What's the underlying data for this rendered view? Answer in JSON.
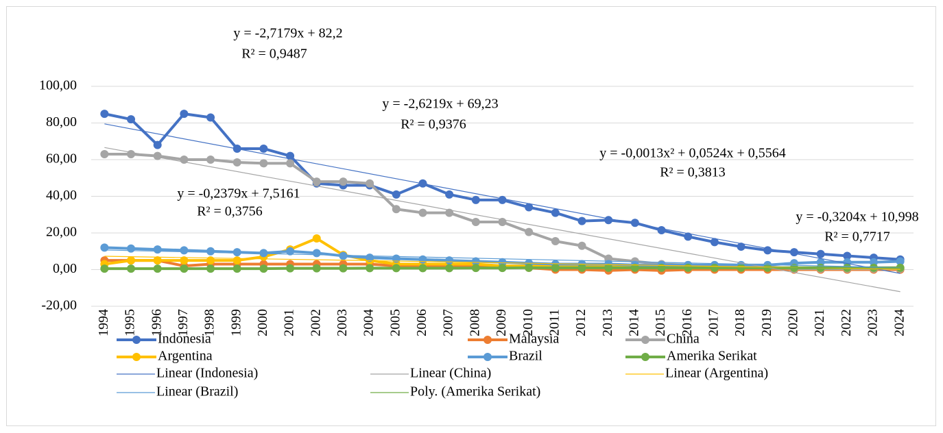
{
  "chart_data": {
    "type": "line",
    "categories": [
      "1994",
      "1995",
      "1996",
      "1997",
      "1998",
      "1999",
      "2000",
      "2001",
      "2002",
      "2003",
      "2004",
      "2005",
      "2006",
      "2007",
      "2008",
      "2009",
      "2010",
      "2011",
      "2012",
      "2013",
      "2014",
      "2015",
      "2016",
      "2017",
      "2018",
      "2019",
      "2020",
      "2021",
      "2022",
      "2023",
      "2024"
    ],
    "ylim": [
      -20,
      100
    ],
    "yticks": [
      {
        "value": -20,
        "label": "-20,00"
      },
      {
        "value": 0,
        "label": "0,00"
      },
      {
        "value": 20,
        "label": "20,00"
      },
      {
        "value": 40,
        "label": "40,00"
      },
      {
        "value": 60,
        "label": "60,00"
      },
      {
        "value": 80,
        "label": "80,00"
      },
      {
        "value": 100,
        "label": "100,00"
      }
    ],
    "grid": true,
    "legend": "bottom",
    "series": [
      {
        "name": "Indonesia",
        "color": "#4472c4",
        "values": [
          85,
          82,
          68,
          85,
          83,
          66,
          66,
          62,
          47,
          46,
          46,
          41,
          47,
          41,
          38,
          38,
          34,
          31,
          26.5,
          27,
          25.5,
          21.5,
          18,
          15,
          12.5,
          10.5,
          9.5,
          8.5,
          7.5,
          6.5,
          5.5
        ]
      },
      {
        "name": "Malaysia",
        "color": "#ed7d31",
        "values": [
          5,
          5,
          5,
          2,
          3,
          3,
          3,
          3,
          3,
          3,
          3,
          2,
          2,
          2,
          2,
          1.5,
          1,
          0,
          0,
          -0.5,
          0,
          -0.5,
          0,
          0,
          0,
          0,
          0,
          0,
          0,
          0,
          0
        ]
      },
      {
        "name": "China",
        "color": "#a5a5a5",
        "values": [
          63,
          63,
          62,
          60,
          60,
          58.5,
          58,
          58,
          48,
          48,
          47,
          33,
          31,
          31,
          26,
          26,
          20.5,
          15.5,
          13,
          6,
          4.5,
          3,
          2.5,
          2,
          2,
          1.5,
          0.5,
          0.5,
          0.5,
          0.5,
          0.5
        ]
      },
      {
        "name": "Argentina",
        "color": "#ffc000",
        "values": [
          3,
          5,
          5,
          5,
          5,
          5,
          7,
          11,
          17,
          8,
          5,
          3,
          3,
          3,
          3,
          2,
          2,
          2,
          2,
          1.5,
          1.5,
          1.5,
          1,
          1,
          1,
          1,
          1,
          1,
          1,
          1,
          1
        ]
      },
      {
        "name": "Brazil",
        "color": "#5b9bd5",
        "values": [
          12,
          11.5,
          11,
          10.5,
          10,
          9.5,
          9,
          10,
          9,
          7.5,
          6.5,
          6,
          5.5,
          5,
          4.5,
          4,
          3.5,
          3,
          3,
          3,
          2.5,
          2.5,
          2.5,
          2.5,
          2.5,
          2.5,
          3.5,
          4,
          4,
          4,
          4.5
        ]
      },
      {
        "name": "Amerika Serikat",
        "color": "#70ad47",
        "values": [
          0.5,
          0.5,
          0.5,
          0.5,
          0.5,
          0.5,
          0.5,
          0.7,
          0.7,
          0.7,
          0.8,
          0.8,
          0.8,
          0.8,
          0.9,
          0.9,
          1,
          1,
          1,
          1,
          1,
          1,
          1,
          1,
          1,
          1,
          1,
          1,
          1,
          1,
          1
        ]
      }
    ],
    "trendlines": [
      {
        "name": "Linear (Indonesia)",
        "color": "#4472c4",
        "x": [
          "1994",
          "2024"
        ],
        "values": [
          79.5,
          -2.1
        ]
      },
      {
        "name": "Linear (China)",
        "color": "#a5a5a5",
        "x": [
          "1994",
          "2024"
        ],
        "values": [
          66.6,
          -12.05
        ]
      },
      {
        "name": "Linear (Argentina)",
        "color": "#ffc000",
        "x": [
          "1994",
          "2024"
        ],
        "values": [
          7.28,
          0.14
        ]
      },
      {
        "name": "Linear (Brazil)",
        "color": "#5b9bd5",
        "x": [
          "1994",
          "2024"
        ],
        "values": [
          10.68,
          1.07
        ]
      },
      {
        "name": "Poly. (Amerika Serikat)",
        "color": "#70ad47",
        "x": [
          "1994",
          "2009",
          "2024"
        ],
        "values": [
          0.61,
          1.06,
          0.93
        ]
      }
    ],
    "annotations": [
      "y = -2,7179x + 82,2",
      "R² = 0,9487",
      "y = -2,6219x + 69,23",
      "R² = 0,9376",
      "y = -0,0013x² + 0,0524x + 0,5564",
      "R² = 0,3813",
      "y = -0,2379x + 7,5161",
      "R² = 0,3756",
      "y = -0,3204x + 10,998",
      "R² = 0,7717"
    ]
  }
}
